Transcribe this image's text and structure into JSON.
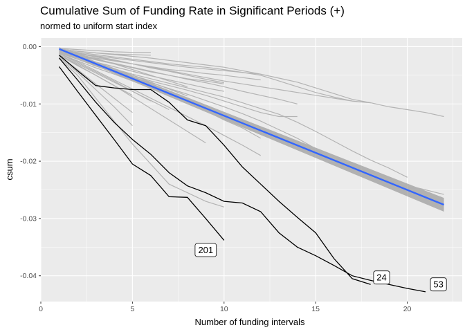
{
  "chart_data": {
    "type": "line",
    "title": "Cumulative Sum of Funding Rate in Significant Periods (+)",
    "subtitle": "normed to uniform start index",
    "xlabel": "Number of funding intervals",
    "ylabel": "csum",
    "xlim": [
      0,
      23
    ],
    "ylim": [
      -0.0445,
      0.0015
    ],
    "x_ticks": [
      0,
      5,
      10,
      15,
      20
    ],
    "x_tick_labels": [
      "0",
      "5",
      "10",
      "15",
      "20"
    ],
    "y_ticks": [
      0.0,
      -0.01,
      -0.02,
      -0.03,
      -0.04
    ],
    "y_tick_labels": [
      "0.00",
      "-0.01",
      "-0.02",
      "-0.03",
      "-0.04"
    ],
    "grid": true,
    "colors": {
      "panel": "#ebebeb",
      "grid": "#ffffff",
      "gray_series": "#b3b3b3",
      "highlight_series": "#000000",
      "trend": "#3366ff",
      "confidence_band": "#999999"
    },
    "trend": {
      "x": [
        1,
        22
      ],
      "y": [
        -0.0004,
        -0.0276
      ],
      "ci_halfwidth": [
        0.0003,
        0.0012
      ]
    },
    "highlighted_series": [
      {
        "label": "201",
        "x": [
          1,
          2,
          3,
          4,
          5,
          6,
          7,
          8,
          9,
          10
        ],
        "y": [
          -0.0035,
          -0.0078,
          -0.012,
          -0.0162,
          -0.0205,
          -0.0225,
          -0.0262,
          -0.0263,
          -0.03,
          -0.0338
        ]
      },
      {
        "label": "24",
        "x": [
          1,
          2,
          3,
          4,
          5,
          6,
          7,
          8,
          9,
          10,
          11,
          12,
          13,
          14,
          15,
          16,
          17,
          18
        ],
        "y": [
          -0.0015,
          -0.0042,
          -0.0068,
          -0.0072,
          -0.0075,
          -0.0075,
          -0.0097,
          -0.0128,
          -0.0138,
          -0.0172,
          -0.021,
          -0.024,
          -0.027,
          -0.0298,
          -0.0325,
          -0.037,
          -0.0405,
          -0.0415
        ]
      },
      {
        "label": "53",
        "x": [
          1,
          2,
          3,
          4,
          5,
          6,
          7,
          8,
          9,
          10,
          11,
          12,
          13,
          14,
          15,
          16,
          17,
          18,
          19,
          20,
          21
        ],
        "y": [
          -0.002,
          -0.0058,
          -0.0097,
          -0.0132,
          -0.0162,
          -0.0188,
          -0.022,
          -0.0243,
          -0.0255,
          -0.027,
          -0.0273,
          -0.0288,
          -0.0325,
          -0.035,
          -0.0365,
          -0.0382,
          -0.04,
          -0.0408,
          -0.0415,
          -0.0422,
          -0.0428
        ]
      }
    ],
    "gray_series": [
      {
        "x": [
          1,
          2,
          3,
          4,
          5,
          6
        ],
        "y": [
          -0.0003,
          -0.0005,
          -0.0007,
          -0.0009,
          -0.001,
          -0.001
        ]
      },
      {
        "x": [
          1,
          2,
          3,
          4,
          5,
          6
        ],
        "y": [
          -0.0004,
          -0.0008,
          -0.0011,
          -0.0013,
          -0.0014,
          -0.0015
        ]
      },
      {
        "x": [
          1,
          2,
          3,
          4,
          5,
          6,
          7,
          8,
          9,
          10,
          11,
          12,
          13,
          14,
          15,
          16,
          17,
          18,
          19,
          20,
          21,
          22
        ],
        "y": [
          -0.0004,
          -0.0008,
          -0.0011,
          -0.0014,
          -0.0017,
          -0.002,
          -0.0024,
          -0.0028,
          -0.0032,
          -0.0036,
          -0.0042,
          -0.0048,
          -0.0055,
          -0.0062,
          -0.0072,
          -0.0082,
          -0.0092,
          -0.0098,
          -0.0105,
          -0.011,
          -0.0115,
          -0.0122
        ]
      },
      {
        "x": [
          1,
          2,
          3,
          4,
          5,
          6,
          7,
          8,
          9,
          10,
          11,
          12,
          13,
          14,
          15,
          16,
          17
        ],
        "y": [
          -0.0005,
          -0.001,
          -0.0014,
          -0.0018,
          -0.0022,
          -0.0026,
          -0.003,
          -0.0033,
          -0.0036,
          -0.004,
          -0.0045,
          -0.005,
          -0.006,
          -0.007,
          -0.008,
          -0.0088,
          -0.0095
        ]
      },
      {
        "x": [
          1,
          2,
          3,
          4,
          5,
          6,
          7,
          8,
          9,
          10,
          11,
          12
        ],
        "y": [
          -0.0006,
          -0.0012,
          -0.0016,
          -0.002,
          -0.0024,
          -0.0028,
          -0.0032,
          -0.0036,
          -0.0039,
          -0.0042,
          -0.0045,
          -0.0048
        ]
      },
      {
        "x": [
          1,
          2,
          3,
          4,
          5,
          6,
          7,
          8,
          9,
          10,
          11,
          12
        ],
        "y": [
          -0.0007,
          -0.0014,
          -0.002,
          -0.0025,
          -0.003,
          -0.0035,
          -0.004,
          -0.0043,
          -0.0047,
          -0.005,
          -0.0054,
          -0.0058
        ]
      },
      {
        "x": [
          1,
          2,
          3,
          4,
          5,
          6,
          7,
          8,
          9,
          10,
          11,
          12,
          13,
          14
        ],
        "y": [
          -0.0008,
          -0.0016,
          -0.0023,
          -0.003,
          -0.0037,
          -0.0044,
          -0.005,
          -0.0057,
          -0.0063,
          -0.007,
          -0.0078,
          -0.0085,
          -0.0092,
          -0.01
        ]
      },
      {
        "x": [
          1,
          2,
          3,
          4,
          5,
          6,
          7,
          8,
          9,
          10
        ],
        "y": [
          -0.0007,
          -0.0015,
          -0.0022,
          -0.0029,
          -0.0036,
          -0.0043,
          -0.005,
          -0.0056,
          -0.006,
          -0.0065
        ]
      },
      {
        "x": [
          1,
          2,
          3,
          4,
          5,
          6,
          7,
          8,
          9,
          10
        ],
        "y": [
          -0.0009,
          -0.0018,
          -0.0027,
          -0.0035,
          -0.0043,
          -0.0051,
          -0.0058,
          -0.0065,
          -0.0072,
          -0.0078
        ]
      },
      {
        "x": [
          1,
          2,
          3,
          4,
          5,
          6,
          7,
          8,
          9,
          10,
          11,
          12,
          13,
          14,
          15,
          16,
          17,
          18,
          19,
          20
        ],
        "y": [
          -0.0009,
          -0.0019,
          -0.0029,
          -0.0039,
          -0.0048,
          -0.0056,
          -0.0064,
          -0.0072,
          -0.008,
          -0.0088,
          -0.0098,
          -0.0108,
          -0.0118,
          -0.0132,
          -0.0148,
          -0.0165,
          -0.0182,
          -0.0198,
          -0.0212,
          -0.0228
        ]
      },
      {
        "x": [
          1,
          2,
          3,
          4,
          5,
          6,
          7,
          8,
          9,
          10,
          11,
          12,
          13,
          14
        ],
        "y": [
          -0.001,
          -0.002,
          -0.003,
          -0.004,
          -0.005,
          -0.006,
          -0.0068,
          -0.0076,
          -0.0085,
          -0.0095,
          -0.0105,
          -0.0115,
          -0.0122,
          -0.0122
        ]
      },
      {
        "x": [
          1,
          2,
          3,
          4,
          5,
          6,
          7,
          8,
          9,
          10,
          11
        ],
        "y": [
          -0.001,
          -0.0022,
          -0.0034,
          -0.0045,
          -0.0055,
          -0.0066,
          -0.0078,
          -0.009,
          -0.0102,
          -0.0115,
          -0.0128
        ]
      },
      {
        "x": [
          1,
          2,
          3,
          4,
          5,
          6,
          7,
          8,
          9,
          10,
          11,
          12
        ],
        "y": [
          -0.0012,
          -0.0025,
          -0.0037,
          -0.0048,
          -0.006,
          -0.0072,
          -0.0085,
          -0.0098,
          -0.0112,
          -0.0128,
          -0.0142,
          -0.016
        ]
      },
      {
        "x": [
          1,
          2,
          3,
          4,
          5,
          6,
          7,
          8,
          9,
          10,
          11,
          12
        ],
        "y": [
          -0.0012,
          -0.0026,
          -0.0042,
          -0.0058,
          -0.0074,
          -0.009,
          -0.0106,
          -0.0122,
          -0.0138,
          -0.0155,
          -0.0172,
          -0.019
        ]
      },
      {
        "x": [
          1,
          2,
          3,
          4,
          5,
          6,
          7,
          8,
          9,
          10,
          11,
          12,
          13,
          14,
          15,
          16,
          17,
          18,
          19,
          20,
          21,
          22
        ],
        "y": [
          -0.0011,
          -0.0022,
          -0.0033,
          -0.0043,
          -0.0053,
          -0.0063,
          -0.0073,
          -0.0083,
          -0.0094,
          -0.0105,
          -0.0117,
          -0.013,
          -0.0145,
          -0.016,
          -0.0178,
          -0.0195,
          -0.021,
          -0.0222,
          -0.0232,
          -0.0242,
          -0.025,
          -0.0258
        ]
      },
      {
        "x": [
          1,
          2,
          3,
          4,
          5,
          6,
          7
        ],
        "y": [
          -0.0014,
          -0.003,
          -0.0046,
          -0.0062,
          -0.0078,
          -0.0094,
          -0.011
        ]
      },
      {
        "x": [
          1,
          2,
          3,
          4,
          5,
          6,
          7,
          8,
          9
        ],
        "y": [
          -0.0015,
          -0.0033,
          -0.005,
          -0.0068,
          -0.0088,
          -0.0108,
          -0.0128,
          -0.0148,
          -0.0168
        ]
      },
      {
        "x": [
          1,
          2,
          3,
          4,
          5
        ],
        "y": [
          -0.0015,
          -0.0032,
          -0.005,
          -0.0068,
          -0.0085
        ]
      },
      {
        "x": [
          1,
          2,
          3,
          4,
          5
        ],
        "y": [
          -0.0018,
          -0.0045,
          -0.0075,
          -0.0105,
          -0.0138
        ]
      },
      {
        "x": [
          1,
          2,
          3,
          4,
          5,
          6,
          7,
          8,
          9,
          10
        ],
        "y": [
          -0.002,
          -0.005,
          -0.009,
          -0.013,
          -0.017,
          -0.0205,
          -0.024,
          -0.0255,
          -0.027,
          -0.028
        ]
      },
      {
        "x": [
          1,
          2,
          3,
          4,
          5
        ],
        "y": [
          -0.0016,
          -0.004,
          -0.0065,
          -0.009,
          -0.0115
        ]
      },
      {
        "x": [
          1,
          2,
          3,
          4,
          5,
          6
        ],
        "y": [
          -0.0012,
          -0.0028,
          -0.0044,
          -0.006,
          -0.0078,
          -0.0095
        ]
      },
      {
        "x": [
          1,
          2,
          3,
          4,
          5,
          6,
          7,
          8
        ],
        "y": [
          -0.0006,
          -0.0013,
          -0.0021,
          -0.003,
          -0.004,
          -0.005,
          -0.006,
          -0.007
        ]
      },
      {
        "x": [
          1,
          2,
          3,
          4,
          5,
          6,
          7,
          8
        ],
        "y": [
          -0.0008,
          -0.0017,
          -0.0027,
          -0.0038,
          -0.005,
          -0.0062,
          -0.0074,
          -0.0086
        ]
      },
      {
        "x": [
          1,
          2,
          3,
          4,
          5,
          6,
          7,
          8,
          9,
          10,
          11,
          12,
          13,
          14,
          15,
          16,
          17,
          18
        ],
        "y": [
          -0.0006,
          -0.0012,
          -0.0018,
          -0.0024,
          -0.003,
          -0.0036,
          -0.0042,
          -0.0048,
          -0.0054,
          -0.006,
          -0.0065,
          -0.007,
          -0.0075,
          -0.008,
          -0.0085,
          -0.009,
          -0.0095,
          -0.0098
        ]
      },
      {
        "x": [
          1,
          2,
          3,
          4,
          5,
          6,
          7,
          8,
          9,
          10
        ],
        "y": [
          -0.0005,
          -0.0011,
          -0.0017,
          -0.0023,
          -0.003,
          -0.0037,
          -0.0043,
          -0.005,
          -0.0057,
          -0.0063
        ]
      }
    ],
    "annotations": [
      {
        "text": "201",
        "x": 9.0,
        "y": -0.0355
      },
      {
        "text": "24",
        "x": 18.6,
        "y": -0.0403
      },
      {
        "text": "53",
        "x": 21.7,
        "y": -0.0415
      }
    ]
  }
}
